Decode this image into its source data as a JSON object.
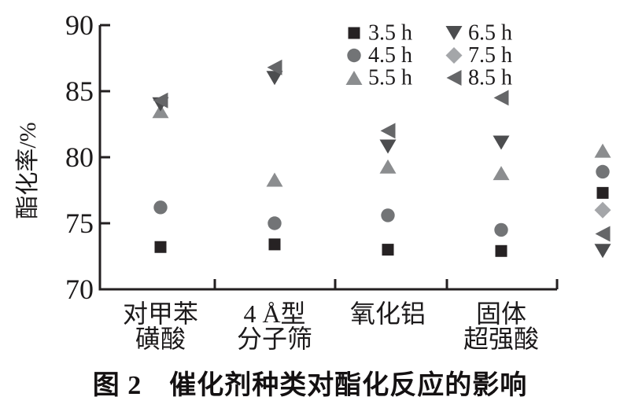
{
  "figure": {
    "caption": "图 2　催化剂种类对酯化反应的影响",
    "background": "#ffffff",
    "text_color": "#1c1a1b",
    "axis_color": "#231f20"
  },
  "chart_data": {
    "type": "scatter",
    "title": "图 2 催化剂种类对酯化反应的影响",
    "xlabel": "",
    "ylabel": "酯化率/%",
    "ylim": [
      70,
      90
    ],
    "yticks": [
      90,
      85,
      80,
      75,
      70
    ],
    "grid": false,
    "legend_position": "top-center-inside",
    "categories": [
      [
        "对甲苯",
        "磺酸"
      ],
      [
        "4 Å型",
        "分子筛"
      ],
      [
        "氧化铝"
      ],
      [
        "固体",
        "超强酸"
      ]
    ],
    "series": [
      {
        "name": "3.5 h",
        "shape": "square",
        "color": "#262223",
        "values": [
          73.2,
          73.4,
          73.0,
          72.9
        ]
      },
      {
        "name": "4.5 h",
        "shape": "circle",
        "color": "#727476",
        "values": [
          76.2,
          75.0,
          75.6,
          74.5
        ]
      },
      {
        "name": "5.5 h",
        "shape": "triangle-up",
        "color": "#8b8d8f",
        "values": [
          83.5,
          78.3,
          79.3,
          78.8
        ]
      },
      {
        "name": "6.5 h",
        "shape": "triangle-down",
        "color": "#4c4d4f",
        "values": [
          84.0,
          86.0,
          80.8,
          81.1
        ]
      },
      {
        "name": "7.5 h",
        "shape": "diamond",
        "color": "#a4a6a9",
        "values": [
          null,
          null,
          null,
          null
        ]
      },
      {
        "name": "8.5 h",
        "shape": "triangle-left",
        "color": "#656668",
        "values": [
          84.3,
          86.8,
          82.0,
          84.5
        ]
      }
    ],
    "legend_columns": [
      [
        0,
        1,
        2
      ],
      [
        3,
        4,
        5
      ]
    ],
    "right_edge_partial_markers": [
      {
        "shape": "triangle-up",
        "value": 80.5
      },
      {
        "shape": "circle",
        "value": 78.9
      },
      {
        "shape": "square",
        "value": 77.3
      },
      {
        "shape": "diamond",
        "value": 76.0
      },
      {
        "shape": "triangle-left",
        "value": 74.2
      },
      {
        "shape": "triangle-down",
        "value": 72.9
      }
    ]
  }
}
